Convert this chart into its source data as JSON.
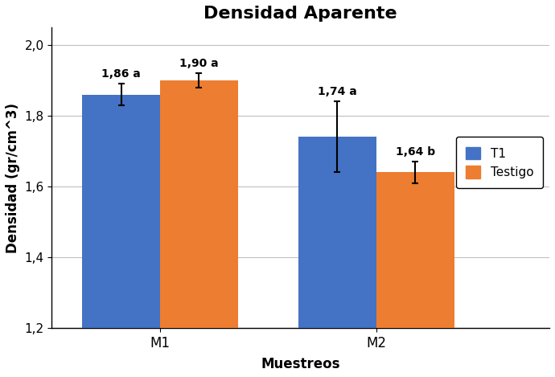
{
  "title": "Densidad Aparente",
  "xlabel": "Muestreos",
  "ylabel": "Densidad (gr/cm^3)",
  "categories": [
    "M1",
    "M2"
  ],
  "t1_values": [
    1.86,
    1.74
  ],
  "testigo_values": [
    1.9,
    1.64
  ],
  "t1_errors": [
    0.03,
    0.1
  ],
  "testigo_errors": [
    0.02,
    0.03
  ],
  "t1_labels": [
    "1,86 a",
    "1,74 a"
  ],
  "testigo_labels": [
    "1,90 a",
    "1,64 b"
  ],
  "t1_color": "#4472C4",
  "testigo_color": "#ED7D31",
  "ylim": [
    1.2,
    2.05
  ],
  "yticks": [
    1.2,
    1.4,
    1.6,
    1.8,
    2.0
  ],
  "ytick_labels": [
    "1,2",
    "1,4",
    "1,6",
    "1,8",
    "2,0"
  ],
  "bar_width": 0.18,
  "group_centers": [
    0.25,
    0.75
  ],
  "xlim": [
    0.0,
    1.15
  ],
  "legend_t1": "T1",
  "legend_testigo": "Testigo",
  "title_fontsize": 16,
  "axis_label_fontsize": 12,
  "tick_fontsize": 11,
  "bar_label_fontsize": 10,
  "legend_fontsize": 11
}
